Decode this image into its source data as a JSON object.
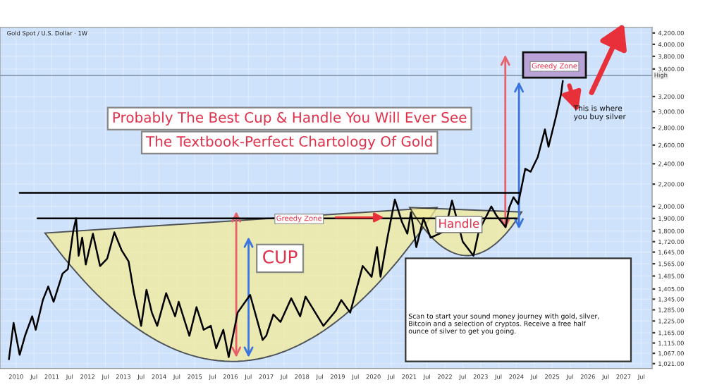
{
  "chart_data": {
    "type": "line",
    "subtitle": "Gold Spot / U.S. Dollar · 1W",
    "annotations": [
      "Probably The Best Cup & Handle You Will Ever See",
      "The Textbook-Perfect Chartology Of Gold",
      "CUP",
      "Handle",
      "Greedy Zone",
      "Greedy Zone",
      "This is where you buy silver",
      "Scan to start your sound money journey with gold, silver, Bitcoin and a selection of cryptos. Receive a free half ounce of silver to get you going."
    ],
    "series": [
      {
        "color": "#000000",
        "x": [
          2009.8,
          2009.93,
          2010.1,
          2010.25,
          2010.45,
          2010.55,
          2010.75,
          2010.9,
          2011.05,
          2011.3,
          2011.45,
          2011.6,
          2011.68,
          2011.75,
          2011.85,
          2011.95,
          2012.15,
          2012.35,
          2012.55,
          2012.75,
          2012.95,
          2013.15,
          2013.3,
          2013.5,
          2013.65,
          2013.8,
          2013.95,
          2014.2,
          2014.45,
          2014.55,
          2014.85,
          2015.05,
          2015.25,
          2015.45,
          2015.6,
          2015.8,
          2015.95,
          2016.2,
          2016.55,
          2016.9,
          2017.0,
          2017.2,
          2017.4,
          2017.7,
          2017.95,
          2018.1,
          2018.6,
          2018.95,
          2019.1,
          2019.35,
          2019.7,
          2019.95,
          2020.1,
          2020.2,
          2020.4,
          2020.6,
          2020.8,
          2020.95,
          2021.05,
          2021.2,
          2021.4,
          2021.6,
          2021.85,
          2022.0,
          2022.2,
          2022.5,
          2022.8,
          2022.95,
          2023.3,
          2023.45,
          2023.7,
          2023.8,
          2023.92,
          2024.05,
          2024.25,
          2024.4,
          2024.6,
          2024.8,
          2024.9,
          2025.1,
          2025.25,
          2025.3
        ],
        "values": [
          1040,
          1215,
          1060,
          1150,
          1250,
          1180,
          1340,
          1420,
          1330,
          1500,
          1530,
          1800,
          1900,
          1620,
          1750,
          1560,
          1780,
          1550,
          1600,
          1790,
          1660,
          1580,
          1380,
          1200,
          1400,
          1270,
          1200,
          1380,
          1250,
          1330,
          1150,
          1300,
          1180,
          1200,
          1090,
          1180,
          1050,
          1270,
          1370,
          1130,
          1150,
          1260,
          1220,
          1350,
          1250,
          1360,
          1200,
          1280,
          1340,
          1270,
          1550,
          1480,
          1680,
          1480,
          1760,
          2060,
          1870,
          1780,
          1950,
          1680,
          1900,
          1750,
          1780,
          1800,
          2050,
          1720,
          1620,
          1800,
          2000,
          1920,
          1830,
          1990,
          2080,
          2020,
          2350,
          2320,
          2470,
          2780,
          2580,
          2920,
          3230,
          3420
        ]
      },
      {
        "color": "#000000",
        "x": [
          2010.6,
          2024.0
        ],
        "values": [
          1900,
          1900
        ]
      },
      {
        "color": "#000000",
        "x": [
          2010.1,
          2024.1
        ],
        "values": [
          2120,
          2120
        ]
      }
    ],
    "log": true,
    "xlim": [
      2009.55,
      2027.8
    ],
    "ylim": [
      1000,
      4300
    ],
    "xticks": [
      2010,
      {
        "value": 2010.5,
        "label": "Jul"
      },
      2011,
      {
        "value": 2011.5,
        "label": "Jul"
      },
      2012,
      {
        "value": 2012.5,
        "label": "Jul"
      },
      2013,
      {
        "value": 2013.5,
        "label": "Jul"
      },
      2014,
      {
        "value": 2014.5,
        "label": "Jul"
      },
      2015,
      {
        "value": 2015.5,
        "label": "Jul"
      },
      2016,
      {
        "value": 2016.5,
        "label": "Jul"
      },
      2017,
      {
        "value": 2017.5,
        "label": "Jul"
      },
      2018,
      {
        "value": 2018.5,
        "label": "Jul"
      },
      2019,
      {
        "value": 2019.5,
        "label": "Jul"
      },
      2020,
      {
        "value": 2020.5,
        "label": "Jul"
      },
      2021,
      {
        "value": 2021.5,
        "label": "Jul"
      },
      2022,
      {
        "value": 2022.5,
        "label": "Jul"
      },
      2023,
      {
        "value": 2023.5,
        "label": "Jul"
      },
      2024,
      {
        "value": 2024.5,
        "label": "Jul"
      },
      2025,
      {
        "value": 2025.5,
        "label": "Jul"
      },
      2026,
      {
        "value": 2026.5,
        "label": "Jul"
      },
      2027,
      {
        "value": 2027.5,
        "label": "Jul"
      }
    ],
    "yticks": [
      {
        "value": 1021,
        "label": "1,021.00"
      },
      {
        "value": 1067,
        "label": "1,067.00"
      },
      {
        "value": 1115,
        "label": "1,115.00"
      },
      {
        "value": 1165,
        "label": "1,165.00"
      },
      {
        "value": 1225,
        "label": "1,225.00"
      },
      {
        "value": 1285,
        "label": "1,285.00"
      },
      {
        "value": 1345,
        "label": "1,345.00"
      },
      {
        "value": 1405,
        "label": "1,405.00"
      },
      {
        "value": 1485,
        "label": "1,485.00"
      },
      {
        "value": 1565,
        "label": "1,565.00"
      },
      {
        "value": 1645,
        "label": "1,645.00"
      },
      {
        "value": 1720,
        "label": "1,720.00"
      },
      {
        "value": 1800,
        "label": "1,800.00"
      },
      {
        "value": 1900,
        "label": "1,900.00"
      },
      {
        "value": 2000,
        "label": "2,000.00"
      },
      {
        "value": 2200,
        "label": "2,200.00"
      },
      {
        "value": 2400,
        "label": "2,400.00"
      },
      {
        "value": 2600,
        "label": "2,600.00"
      },
      {
        "value": 2800,
        "label": "2,800.00"
      },
      {
        "value": 3000,
        "label": "3,000.00"
      },
      {
        "value": 3200,
        "label": "3,200.00"
      },
      {
        "value": 3600,
        "label": "3,600.00"
      },
      {
        "value": 3800,
        "label": "3,800.00"
      },
      {
        "value": 4000,
        "label": "4,000.00"
      },
      {
        "value": 4200,
        "label": "4,200.00"
      }
    ],
    "ref_lines": [
      {
        "axis": "y",
        "value": 3500,
        "label": "High",
        "color": "#8a9bb0"
      }
    ],
    "grid": true
  }
}
